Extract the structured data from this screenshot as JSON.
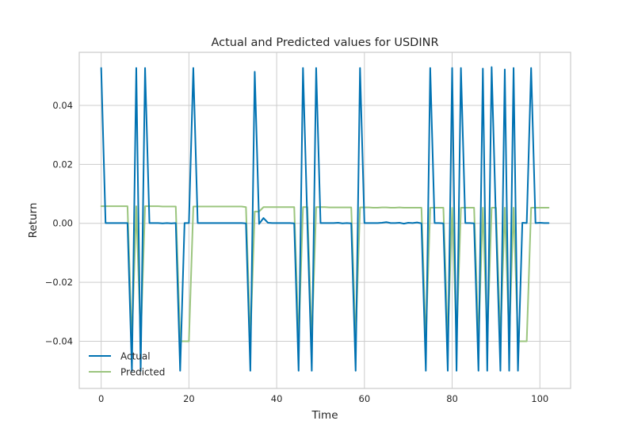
{
  "chart_data": {
    "type": "line",
    "title": "Actual and Predicted values for USDINR",
    "xlabel": "Time",
    "ylabel": "Return",
    "xlim": [
      -5,
      107
    ],
    "ylim": [
      -0.056,
      0.058
    ],
    "xticks": [
      0,
      20,
      40,
      60,
      80,
      100
    ],
    "xtick_labels": [
      "0",
      "20",
      "40",
      "60",
      "80",
      "100"
    ],
    "yticks": [
      -0.04,
      -0.02,
      0.0,
      0.02,
      0.04
    ],
    "ytick_labels": [
      "−0.04",
      "−0.02",
      "0.00",
      "0.02",
      "0.04"
    ],
    "grid": true,
    "legend_position": "lower-left",
    "series": [
      {
        "name": "Actual",
        "color": "#0072B2",
        "x": [
          0,
          1,
          2,
          3,
          4,
          5,
          6,
          7,
          8,
          9,
          10,
          11,
          12,
          13,
          14,
          15,
          16,
          17,
          18,
          19,
          20,
          21,
          22,
          23,
          24,
          25,
          26,
          27,
          28,
          29,
          30,
          31,
          32,
          33,
          34,
          35,
          36,
          37,
          38,
          39,
          40,
          41,
          42,
          43,
          44,
          45,
          46,
          47,
          48,
          49,
          50,
          51,
          52,
          53,
          54,
          55,
          56,
          57,
          58,
          59,
          60,
          61,
          62,
          63,
          64,
          65,
          66,
          67,
          68,
          69,
          70,
          71,
          72,
          73,
          74,
          75,
          76,
          77,
          78,
          79,
          80,
          81,
          82,
          83,
          84,
          85,
          86,
          87,
          88,
          89,
          90,
          91,
          92,
          93,
          94,
          95,
          96,
          97,
          98,
          99,
          100,
          101,
          102
        ],
        "y": [
          0.0527,
          0.0001,
          0.0001,
          0.0001,
          0.0001,
          0.0001,
          0.0001,
          -0.05,
          0.0527,
          -0.05,
          0.0527,
          0.0001,
          0.0001,
          0.0001,
          0.0,
          0.0001,
          0.0,
          0.0001,
          -0.05,
          0.0001,
          0.0001,
          0.0527,
          0.0001,
          0.0001,
          0.0001,
          0.0001,
          0.0001,
          0.0001,
          0.0001,
          0.0001,
          0.0001,
          0.0001,
          0.0001,
          0.0,
          -0.05,
          0.0514,
          -0.0002,
          0.0018,
          0.0002,
          0.0001,
          0.0001,
          0.0001,
          0.0001,
          0.0001,
          0.0,
          -0.05,
          0.0527,
          0.0,
          -0.05,
          0.0527,
          0.0001,
          0.0001,
          0.0001,
          0.0001,
          0.0002,
          0.0,
          0.0001,
          0.0,
          -0.05,
          0.0527,
          0.0001,
          0.0001,
          0.0001,
          0.0001,
          0.0002,
          0.0004,
          0.0001,
          0.0001,
          0.0002,
          -0.0001,
          0.0002,
          0.0001,
          0.0003,
          0.0,
          -0.05,
          0.0527,
          0.0001,
          0.0001,
          0.0,
          -0.05,
          0.0527,
          -0.05,
          0.0527,
          0.0001,
          0.0001,
          0.0,
          -0.05,
          0.0525,
          -0.05,
          0.053,
          0.0001,
          -0.05,
          0.0522,
          -0.05,
          0.0527,
          -0.05,
          0.0002,
          0.0001,
          0.0527,
          0.0001,
          0.0002,
          0.0001,
          0.0001
        ]
      },
      {
        "name": "Predicted",
        "color": "#9BC57E",
        "x": [
          0,
          1,
          2,
          3,
          4,
          5,
          6,
          7,
          8,
          9,
          10,
          11,
          12,
          13,
          14,
          15,
          16,
          17,
          18,
          19,
          20,
          21,
          22,
          23,
          24,
          25,
          26,
          27,
          28,
          29,
          30,
          31,
          32,
          33,
          34,
          35,
          36,
          37,
          38,
          39,
          40,
          41,
          42,
          43,
          44,
          45,
          46,
          47,
          48,
          49,
          50,
          51,
          52,
          53,
          54,
          55,
          56,
          57,
          58,
          59,
          60,
          61,
          62,
          63,
          64,
          65,
          66,
          67,
          68,
          69,
          70,
          71,
          72,
          73,
          74,
          75,
          76,
          77,
          78,
          79,
          80,
          81,
          82,
          83,
          84,
          85,
          86,
          87,
          88,
          89,
          90,
          91,
          92,
          93,
          94,
          95,
          96,
          97,
          98,
          99,
          100,
          101,
          102
        ],
        "y": [
          0.0058,
          0.0058,
          0.0058,
          0.0058,
          0.0058,
          0.0058,
          0.0058,
          -0.04,
          0.0058,
          -0.04,
          0.0058,
          0.0058,
          0.0058,
          0.0058,
          0.0057,
          0.0057,
          0.0057,
          0.0057,
          -0.04,
          -0.04,
          -0.04,
          0.0057,
          0.0057,
          0.0057,
          0.0057,
          0.0057,
          0.0057,
          0.0057,
          0.0057,
          0.0057,
          0.0057,
          0.0057,
          0.0057,
          0.0055,
          -0.04,
          0.004,
          0.004,
          0.0055,
          0.0055,
          0.0055,
          0.0055,
          0.0055,
          0.0055,
          0.0055,
          0.0055,
          -0.04,
          0.0055,
          0.0055,
          -0.04,
          0.0055,
          0.0055,
          0.0055,
          0.0054,
          0.0054,
          0.0054,
          0.0054,
          0.0054,
          0.0054,
          -0.04,
          0.0054,
          0.0054,
          0.0054,
          0.0053,
          0.0053,
          0.0054,
          0.0054,
          0.0053,
          0.0053,
          0.0054,
          0.0053,
          0.0053,
          0.0053,
          0.0053,
          0.0053,
          -0.04,
          0.0053,
          0.0053,
          0.0053,
          0.0053,
          -0.04,
          0.0053,
          -0.04,
          0.0053,
          0.0053,
          0.0053,
          0.0053,
          -0.04,
          0.0053,
          -0.04,
          0.0053,
          0.0053,
          -0.04,
          0.0053,
          -0.04,
          0.0053,
          -0.04,
          -0.04,
          -0.04,
          0.0053,
          0.0053,
          0.0053,
          0.0053,
          0.0053
        ]
      }
    ]
  }
}
